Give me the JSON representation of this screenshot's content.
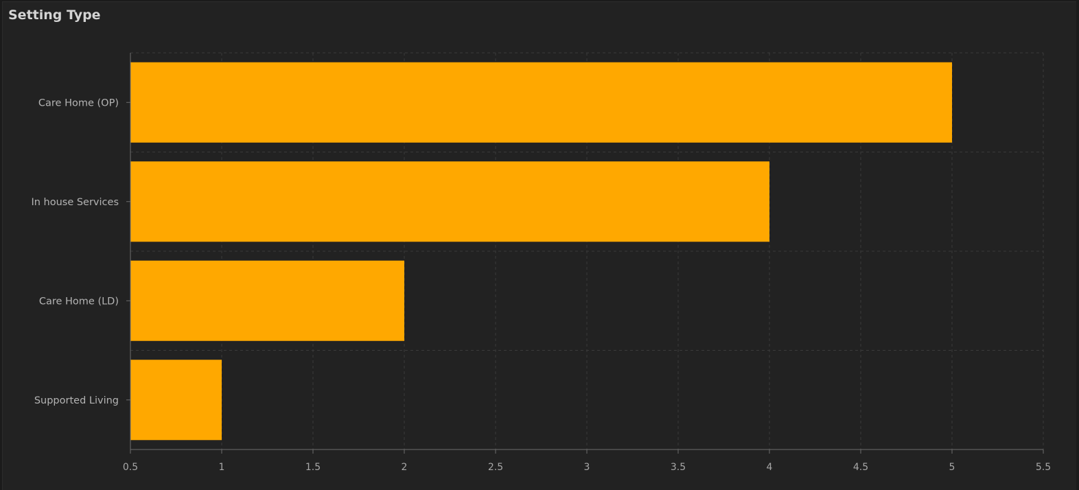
{
  "chart_data": {
    "type": "bar",
    "orientation": "horizontal",
    "title": "Setting Type",
    "categories": [
      "Care Home (OP)",
      "In house Services",
      "Care Home (LD)",
      "Supported Living"
    ],
    "values": [
      5,
      4,
      2,
      1
    ],
    "xlim": [
      0.5,
      5.5
    ],
    "xticks": [
      "0.5",
      "1",
      "1.5",
      "2",
      "2.5",
      "3",
      "3.5",
      "4",
      "4.5",
      "5",
      "5.5"
    ],
    "xlabel": "",
    "ylabel": "",
    "grid": true,
    "bar_color": "#FFA800",
    "background_color": "#222222",
    "grid_color": "#3a3a3a",
    "axis_color": "#6e6e6e",
    "text_color": "#b4b4b4"
  }
}
